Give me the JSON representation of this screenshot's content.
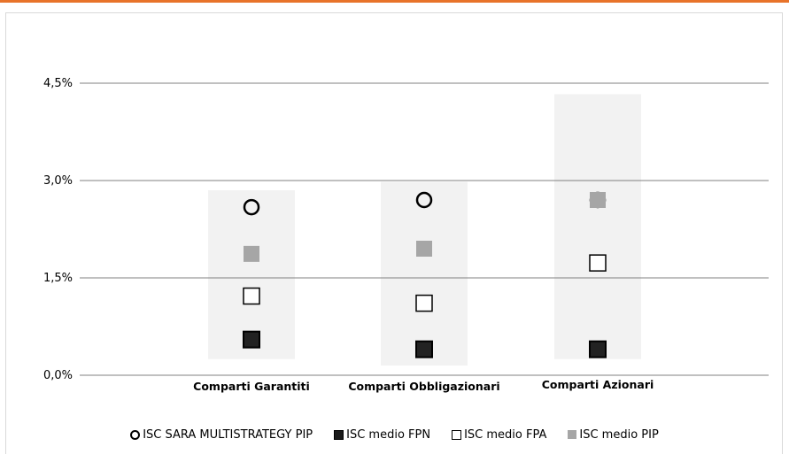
{
  "chart_data": {
    "type": "scatter",
    "categories": [
      "Comparti Garantiti",
      "Comparti Obbligazionari",
      "Comparti Azionari"
    ],
    "y_ticks": [
      "0,0%",
      "1,5%",
      "3,0%",
      "4,5%"
    ],
    "ylim": [
      0,
      4.5
    ],
    "grid": true,
    "range_bands": [
      {
        "category": "Comparti Garantiti",
        "min": 0.25,
        "max": 2.85
      },
      {
        "category": "Comparti Obbligazionari",
        "min": 0.15,
        "max": 2.98
      },
      {
        "category": "Comparti Azionari",
        "min": 0.25,
        "max": 4.33
      }
    ],
    "series": [
      {
        "name": "ISC SARA MULTISTRATEGY PIP",
        "marker": "open-circle",
        "color": "#000000",
        "values": [
          2.59,
          2.7,
          2.7
        ]
      },
      {
        "name": "ISC medio FPN",
        "marker": "filled-square",
        "color": "#1a1a1a",
        "values": [
          0.55,
          0.4,
          0.4
        ]
      },
      {
        "name": "ISC medio FPA",
        "marker": "open-square",
        "color": "#000000",
        "values": [
          1.22,
          1.11,
          1.73
        ]
      },
      {
        "name": "ISC medio PIP",
        "marker": "gray-square",
        "color": "#a6a6a6",
        "values": [
          1.87,
          1.95,
          2.7
        ]
      }
    ],
    "legend_position": "bottom"
  },
  "colors": {
    "accent_rule": "#e8732a",
    "band": "#f2f2f2",
    "grid": "#808080",
    "pip_gray": "#a6a6a6"
  }
}
